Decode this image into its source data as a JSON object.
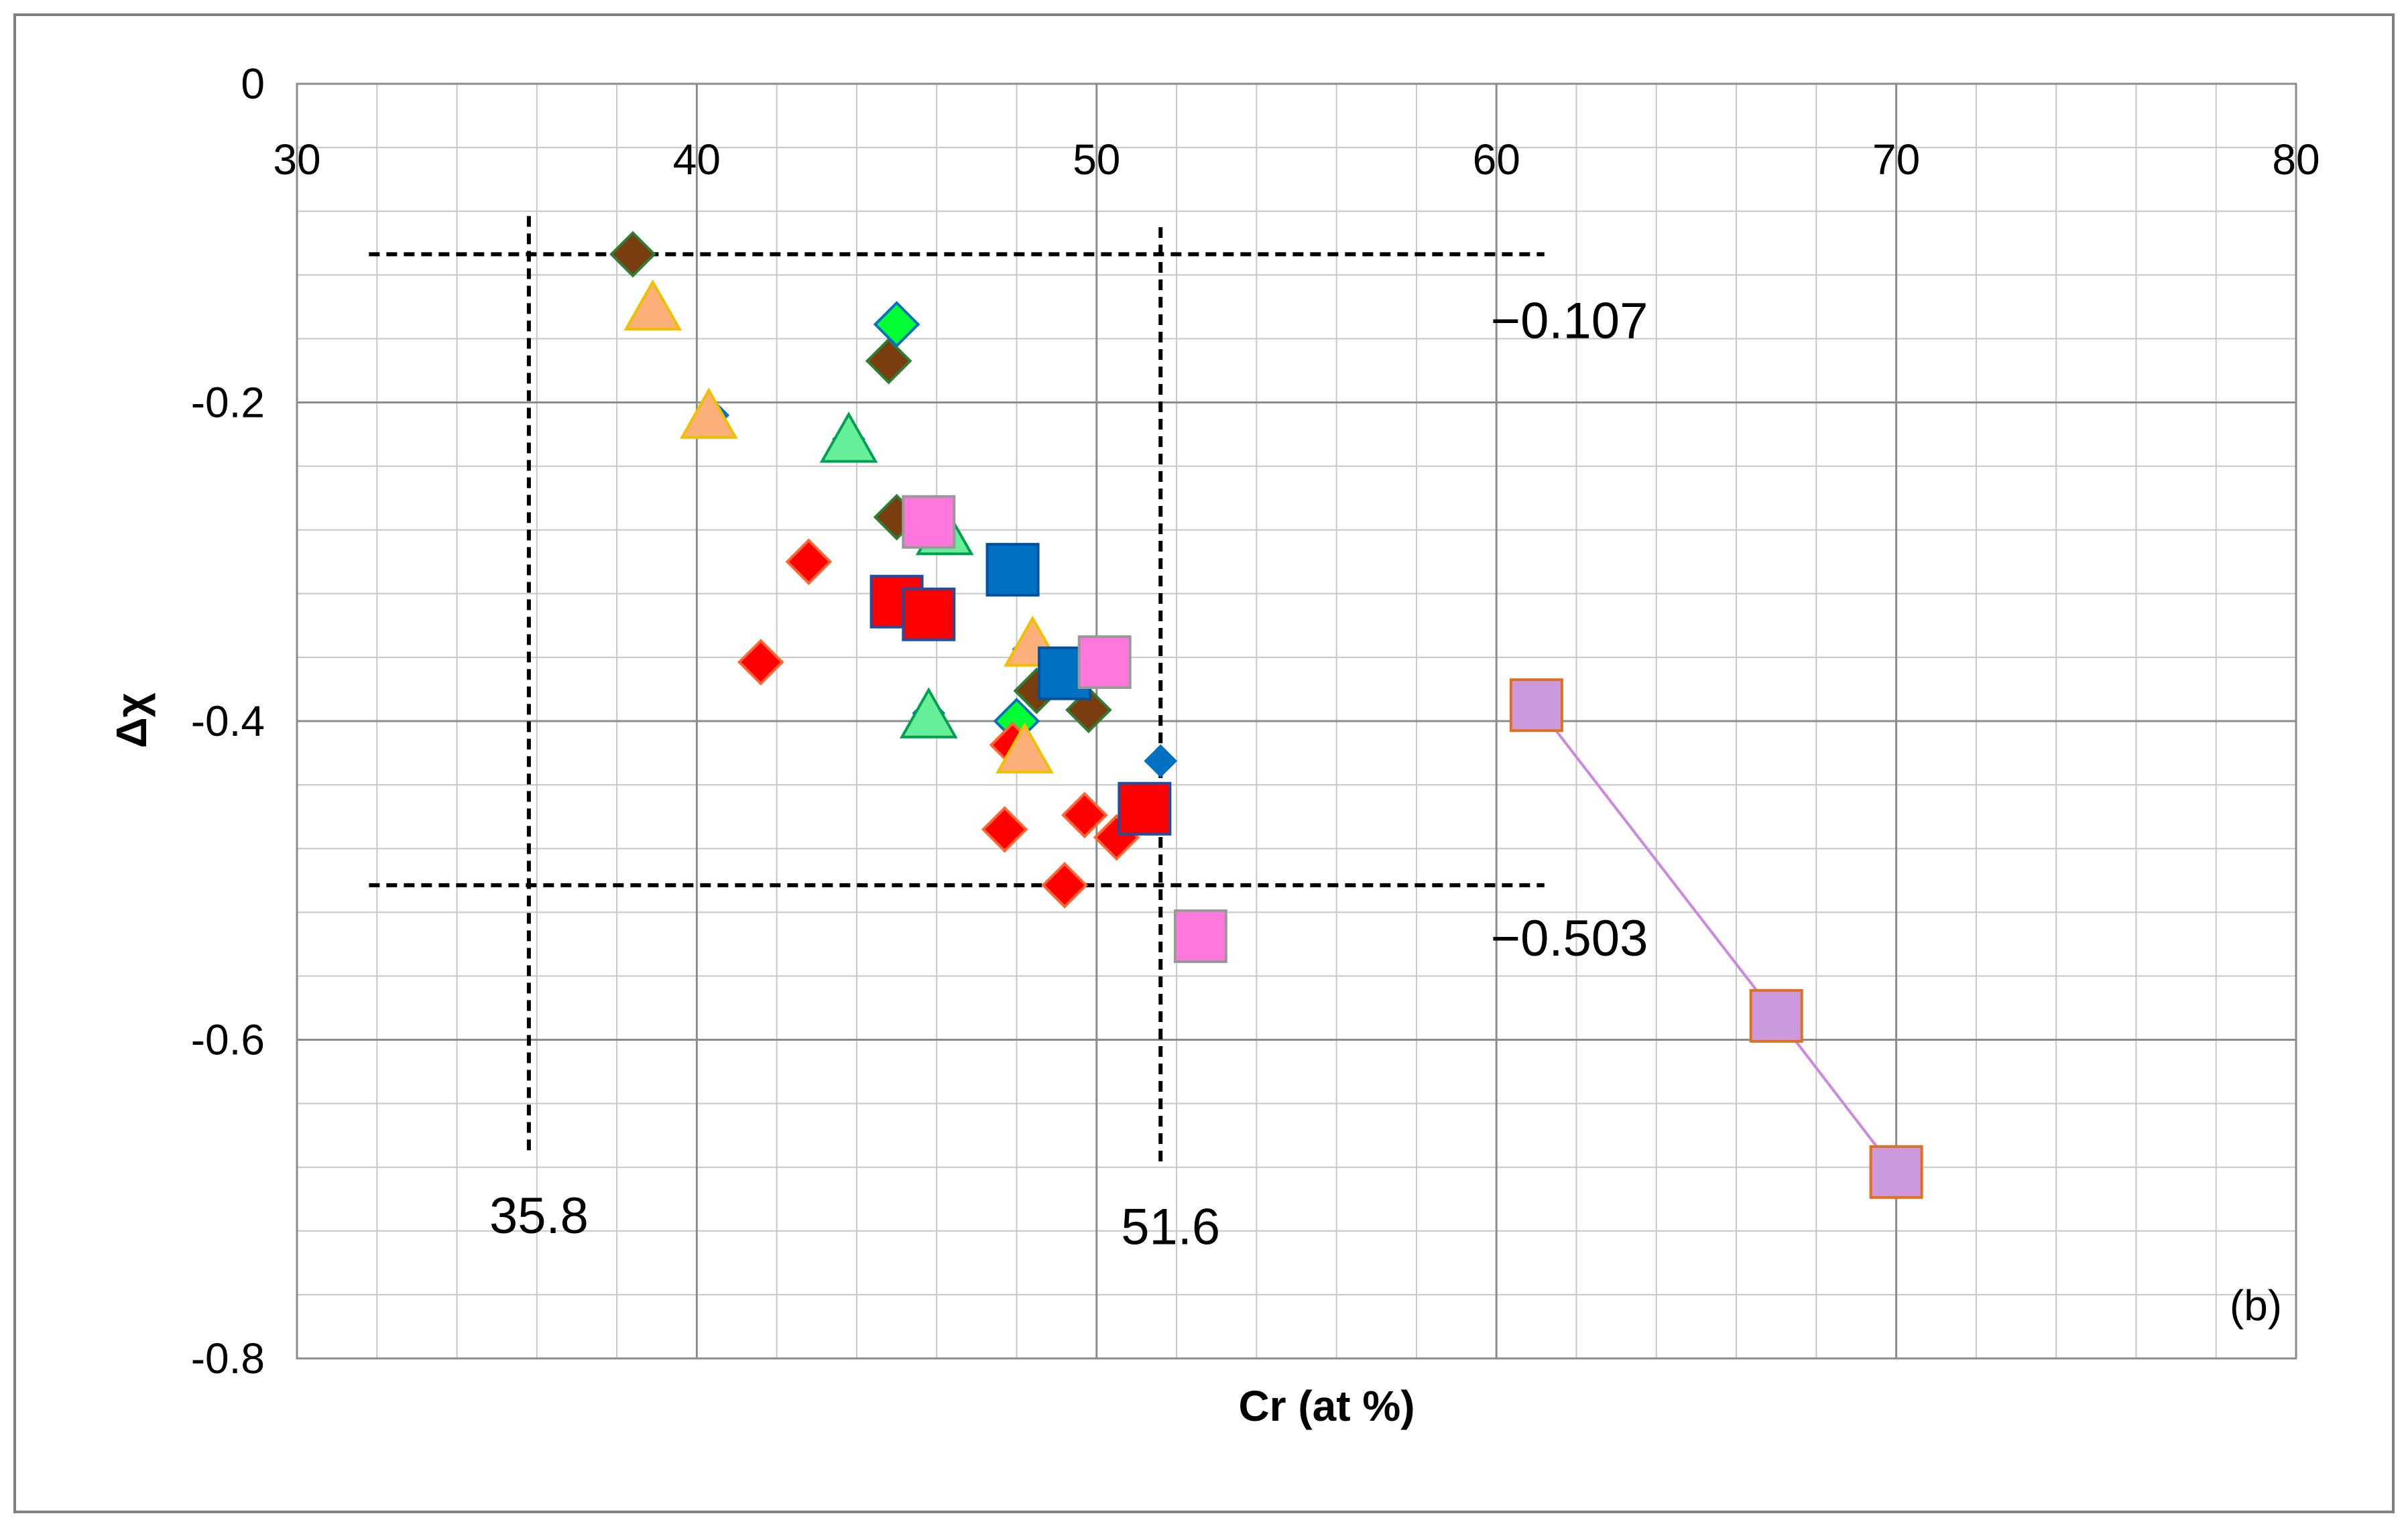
{
  "chart_data": {
    "type": "scatter",
    "panel_label": "(b)",
    "xlabel": "Cr (at %)",
    "ylabel": "Δχ",
    "xlim": [
      30,
      80
    ],
    "ylim": [
      -0.8,
      0
    ],
    "x_ticks": [
      "30",
      "40",
      "50",
      "60",
      "70",
      "80"
    ],
    "y_ticks": [
      "0",
      "-0.2",
      "-0.4",
      "-0.6",
      "-0.8"
    ],
    "grid": true,
    "x_axis_position": "top",
    "series": [
      {
        "marker": "diamond",
        "fill": "#7a3d10",
        "stroke": "#2e7d32",
        "size": "small",
        "points": [
          [
            38.4,
            -0.107
          ],
          [
            44.8,
            -0.174
          ],
          [
            45.0,
            -0.272
          ],
          [
            48.5,
            -0.381
          ],
          [
            49.8,
            -0.393
          ]
        ]
      },
      {
        "marker": "diamond",
        "fill": "#0070c0",
        "stroke": "#0070c0",
        "size": "tiny",
        "points": [
          [
            38.9,
            -0.143
          ],
          [
            40.4,
            -0.208
          ],
          [
            43.8,
            -0.223
          ],
          [
            45.8,
            -0.395
          ],
          [
            48.3,
            -0.355
          ],
          [
            48.1,
            -0.415
          ],
          [
            51.6,
            -0.425
          ]
        ]
      },
      {
        "marker": "diamond",
        "fill": "#00ff33",
        "stroke": "#0070c0",
        "size": "small",
        "points": [
          [
            45.0,
            -0.151
          ],
          [
            48.0,
            -0.4
          ]
        ]
      },
      {
        "marker": "diamond",
        "fill": "#ff0000",
        "stroke": "#ff6633",
        "size": "small",
        "points": [
          [
            42.8,
            -0.3
          ],
          [
            41.6,
            -0.363
          ],
          [
            47.7,
            -0.468
          ],
          [
            47.9,
            -0.415
          ],
          [
            49.7,
            -0.459
          ],
          [
            50.5,
            -0.473
          ],
          [
            49.2,
            -0.503
          ]
        ]
      },
      {
        "marker": "triangle",
        "fill": "#66ee99",
        "stroke": "#00a050",
        "size": "large",
        "points": [
          [
            43.8,
            -0.225
          ],
          [
            46.2,
            -0.283
          ],
          [
            45.8,
            -0.398
          ]
        ]
      },
      {
        "marker": "triangle",
        "fill": "#fbb07a",
        "stroke": "#f0c000",
        "size": "large",
        "points": [
          [
            38.9,
            -0.142
          ],
          [
            40.3,
            -0.21
          ],
          [
            48.4,
            -0.353
          ],
          [
            48.2,
            -0.42
          ]
        ]
      },
      {
        "marker": "square",
        "fill": "#0070c0",
        "stroke": "#0050a0",
        "size": "large",
        "points": [
          [
            47.9,
            -0.305
          ],
          [
            49.2,
            -0.37
          ]
        ]
      },
      {
        "marker": "square",
        "fill": "#ff0000",
        "stroke": "#1f4fa0",
        "size": "large",
        "points": [
          [
            45.0,
            -0.325
          ],
          [
            45.8,
            -0.333
          ],
          [
            51.2,
            -0.455
          ]
        ]
      },
      {
        "marker": "square",
        "fill": "#ff77dd",
        "stroke": "#999999",
        "size": "large",
        "points": [
          [
            45.8,
            -0.275
          ],
          [
            50.2,
            -0.363
          ],
          [
            52.6,
            -0.535
          ]
        ]
      },
      {
        "marker": "square",
        "fill": "#cc99dd",
        "stroke": "#e07020",
        "size": "large",
        "line": "#cc88dd",
        "points": [
          [
            61.0,
            -0.39
          ],
          [
            67.0,
            -0.585
          ],
          [
            70.0,
            -0.683
          ]
        ]
      }
    ],
    "reference_lines": {
      "horizontal": [
        {
          "y": -0.107,
          "x_from": 31.8,
          "x_to": 61.2,
          "label": "−0.107"
        },
        {
          "y": -0.503,
          "x_from": 31.8,
          "x_to": 61.2,
          "label": "−0.503"
        }
      ],
      "vertical": [
        {
          "x": 35.8,
          "y_from": -0.083,
          "y_to": -0.673,
          "label": "35.8"
        },
        {
          "x": 51.6,
          "y_from": -0.09,
          "y_to": -0.68,
          "label": "51.6"
        }
      ]
    }
  }
}
